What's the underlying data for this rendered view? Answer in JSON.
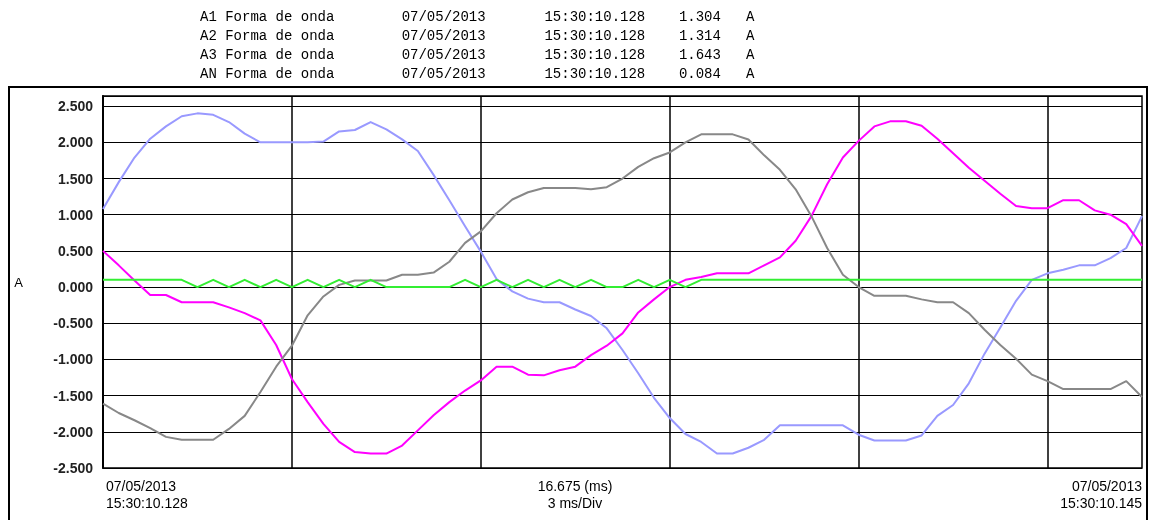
{
  "chart_data": {
    "type": "line",
    "annotations": [
      "A1 Forma de onda        07/05/2013       15:30:10.128    1.304   A",
      "A2 Forma de onda        07/05/2013       15:30:10.128    1.314   A",
      "A3 Forma de onda        07/05/2013       15:30:10.128    1.643   A",
      "AN Forma de onda        07/05/2013       15:30:10.128    0.084   A",
      "07/05/2013\n15:30:10.128",
      "16.675 (ms)\n3 ms/Div",
      "07/05/2013\n15:30:10.145"
    ],
    "ylabel": "A",
    "categories": [
      null,
      null,
      null,
      null,
      null,
      null,
      null,
      null,
      null,
      null,
      null,
      null,
      null,
      null,
      null,
      null,
      null,
      null,
      null,
      null,
      null,
      null,
      null,
      null,
      null,
      null,
      null,
      null,
      null,
      null,
      null,
      null,
      null,
      null,
      null,
      null,
      null,
      null,
      null,
      null,
      null,
      null,
      null,
      null,
      null,
      null,
      null,
      null,
      null,
      null,
      null,
      null,
      null,
      null,
      null,
      null,
      null,
      null,
      null,
      null,
      null,
      null,
      null,
      null,
      null,
      null,
      null
    ],
    "ylim": [
      -2.5,
      2.64
    ],
    "yticks": [
      {
        "value": -2.5,
        "label": "-2.500"
      },
      {
        "value": -2,
        "label": "-2.000"
      },
      {
        "value": -1.5,
        "label": "-1.500"
      },
      {
        "value": -1,
        "label": "-1.000"
      },
      {
        "value": -0.5,
        "label": "-0.500"
      },
      {
        "value": 0,
        "label": "0.000"
      },
      {
        "value": 0.5,
        "label": "0.500"
      },
      {
        "value": 1,
        "label": "1.000"
      },
      {
        "value": 1.5,
        "label": "1.500"
      },
      {
        "value": 2,
        "label": "2.000"
      },
      {
        "value": 2.5,
        "label": "2.500"
      }
    ],
    "tick_labels": "y",
    "grid": true,
    "marker": "none",
    "line_style": "solid",
    "series": [
      {
        "color": "#9999ff",
        "values": [
          1.08,
          1.45,
          1.79,
          2.05,
          2.22,
          2.36,
          2.4,
          2.38,
          2.28,
          2.12,
          2.0,
          2.0,
          2.0,
          2.0,
          2.01,
          2.15,
          2.17,
          2.28,
          2.18,
          2.04,
          1.88,
          1.55,
          1.2,
          0.84,
          0.49,
          0.11,
          -0.06,
          -0.16,
          -0.21,
          -0.21,
          -0.31,
          -0.4,
          -0.57,
          -0.87,
          -1.19,
          -1.53,
          -1.81,
          -2.03,
          -2.14,
          -2.3,
          -2.3,
          -2.22,
          -2.11,
          -1.91,
          -1.91,
          -1.91,
          -1.91,
          -1.91,
          -2.04,
          -2.12,
          -2.12,
          -2.12,
          -2.05,
          -1.78,
          -1.63,
          -1.33,
          -0.92,
          -0.56,
          -0.19,
          0.1,
          0.19,
          0.24,
          0.3,
          0.3,
          0.4,
          0.54,
          0.98
        ]
      },
      {
        "color": "#ff00ff",
        "values": [
          0.5,
          0.3,
          0.09,
          -0.11,
          -0.11,
          -0.21,
          -0.21,
          -0.21,
          -0.28,
          -0.36,
          -0.46,
          -0.8,
          -1.27,
          -1.59,
          -1.89,
          -2.14,
          -2.28,
          -2.3,
          -2.3,
          -2.19,
          -1.98,
          -1.77,
          -1.59,
          -1.43,
          -1.29,
          -1.1,
          -1.1,
          -1.21,
          -1.22,
          -1.15,
          -1.1,
          -0.94,
          -0.81,
          -0.64,
          -0.35,
          -0.17,
          0.0,
          0.1,
          0.14,
          0.19,
          0.19,
          0.19,
          0.3,
          0.41,
          0.64,
          0.98,
          1.42,
          1.79,
          2.02,
          2.22,
          2.29,
          2.29,
          2.23,
          2.05,
          1.85,
          1.65,
          1.47,
          1.29,
          1.12,
          1.09,
          1.09,
          1.2,
          1.2,
          1.06,
          1.0,
          0.87,
          0.57
        ]
      },
      {
        "color": "#888888",
        "values": [
          -1.61,
          -1.74,
          -1.84,
          -1.95,
          -2.07,
          -2.11,
          -2.11,
          -2.11,
          -1.96,
          -1.78,
          -1.45,
          -1.1,
          -0.81,
          -0.39,
          -0.13,
          0.03,
          0.09,
          0.09,
          0.09,
          0.17,
          0.17,
          0.2,
          0.35,
          0.61,
          0.77,
          1.02,
          1.21,
          1.31,
          1.37,
          1.37,
          1.37,
          1.35,
          1.38,
          1.5,
          1.66,
          1.78,
          1.86,
          2.0,
          2.11,
          2.11,
          2.11,
          2.04,
          1.82,
          1.62,
          1.35,
          0.98,
          0.54,
          0.17,
          0.0,
          -0.12,
          -0.12,
          -0.12,
          -0.17,
          -0.21,
          -0.21,
          -0.36,
          -0.59,
          -0.8,
          -0.99,
          -1.21,
          -1.3,
          -1.41,
          -1.41,
          -1.41,
          -1.41,
          -1.3,
          -1.52
        ]
      },
      {
        "color": "#33ee33",
        "values": [
          0.1,
          0.1,
          0.1,
          0.1,
          0.1,
          0.1,
          0.0,
          0.1,
          0.0,
          0.1,
          0.0,
          0.1,
          0.0,
          0.1,
          0.0,
          0.1,
          0.0,
          0.1,
          0.0,
          0.0,
          0.0,
          0.0,
          0.0,
          0.1,
          0.0,
          0.1,
          0.0,
          0.1,
          0.0,
          0.1,
          0.0,
          0.1,
          0.0,
          0.0,
          0.1,
          0.0,
          0.1,
          0.0,
          0.1,
          0.1,
          0.1,
          0.1,
          0.1,
          0.1,
          0.1,
          0.1,
          0.1,
          0.1,
          0.1,
          0.1,
          0.1,
          0.1,
          0.1,
          0.1,
          0.1,
          0.1,
          0.1,
          0.1,
          0.1,
          0.1,
          0.1,
          0.1,
          0.1,
          0.1,
          0.1,
          0.1,
          0.1
        ]
      }
    ]
  }
}
